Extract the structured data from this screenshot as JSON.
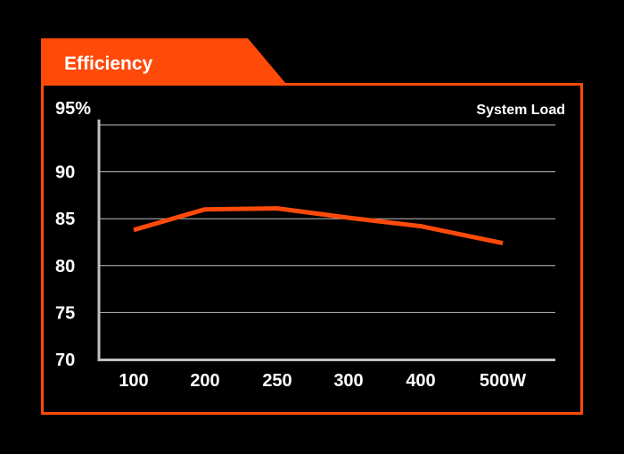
{
  "chart_data": {
    "type": "line",
    "title": "Efficiency",
    "xlabel": "System Load",
    "ylabel": "",
    "categories": [
      "100",
      "200",
      "250",
      "300",
      "400",
      "500W"
    ],
    "series": [
      {
        "values": [
          83.8,
          86.0,
          86.1,
          85.1,
          84.2,
          82.4
        ]
      }
    ],
    "yticks": [
      "95%",
      "90",
      "85",
      "80",
      "75",
      "70"
    ],
    "ylim": [
      70,
      95
    ],
    "grid": true,
    "colors": {
      "accent": "#ff4a0a",
      "line": "#ff4a0a",
      "grid": "#bfbfbf",
      "axis": "#bfbfbf",
      "background": "#000000",
      "text": "#ffffff"
    }
  }
}
